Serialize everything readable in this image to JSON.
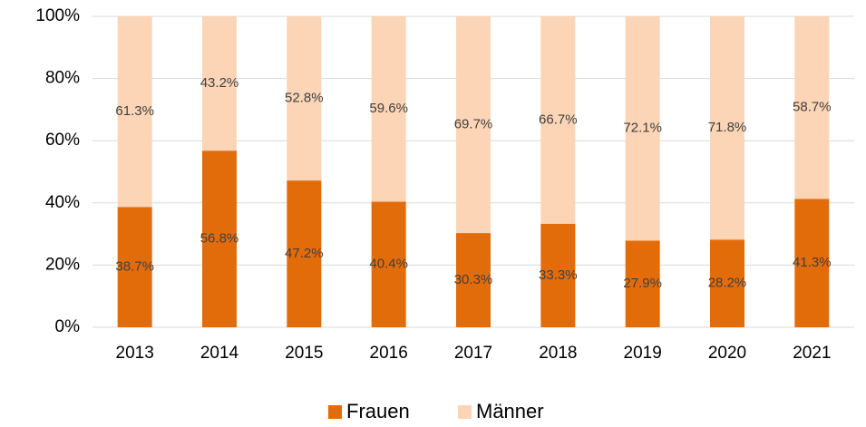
{
  "chart_data": {
    "type": "stacked_bar",
    "categories": [
      "2013",
      "2014",
      "2015",
      "2016",
      "2017",
      "2018",
      "2019",
      "2020",
      "2021"
    ],
    "series": [
      {
        "name": "Frauen",
        "color": "#e36c0a",
        "values": [
          38.7,
          56.8,
          47.2,
          40.4,
          30.3,
          33.3,
          27.9,
          28.2,
          41.3
        ],
        "value_labels": [
          "38.7%",
          "56.8%",
          "47.2%",
          "40.4%",
          "30.3%",
          "33.3%",
          "27.9%",
          "28.2%",
          "41.3%"
        ]
      },
      {
        "name": "Männer",
        "color": "#fbd5b5",
        "values": [
          61.3,
          43.2,
          52.8,
          59.6,
          69.7,
          66.7,
          72.1,
          71.8,
          58.7
        ],
        "value_labels": [
          "61.3%",
          "43.2%",
          "52.8%",
          "59.6%",
          "69.7%",
          "66.7%",
          "72.1%",
          "71.8%",
          "58.7%"
        ]
      }
    ],
    "ylim": [
      0,
      100
    ],
    "yticks": [
      {
        "value": 0,
        "label": "0%"
      },
      {
        "value": 20,
        "label": "20%"
      },
      {
        "value": 40,
        "label": "40%"
      },
      {
        "value": 60,
        "label": "60%"
      },
      {
        "value": 80,
        "label": "80%"
      },
      {
        "value": 100,
        "label": "100%"
      }
    ],
    "grid": true,
    "legend": "bottom"
  }
}
